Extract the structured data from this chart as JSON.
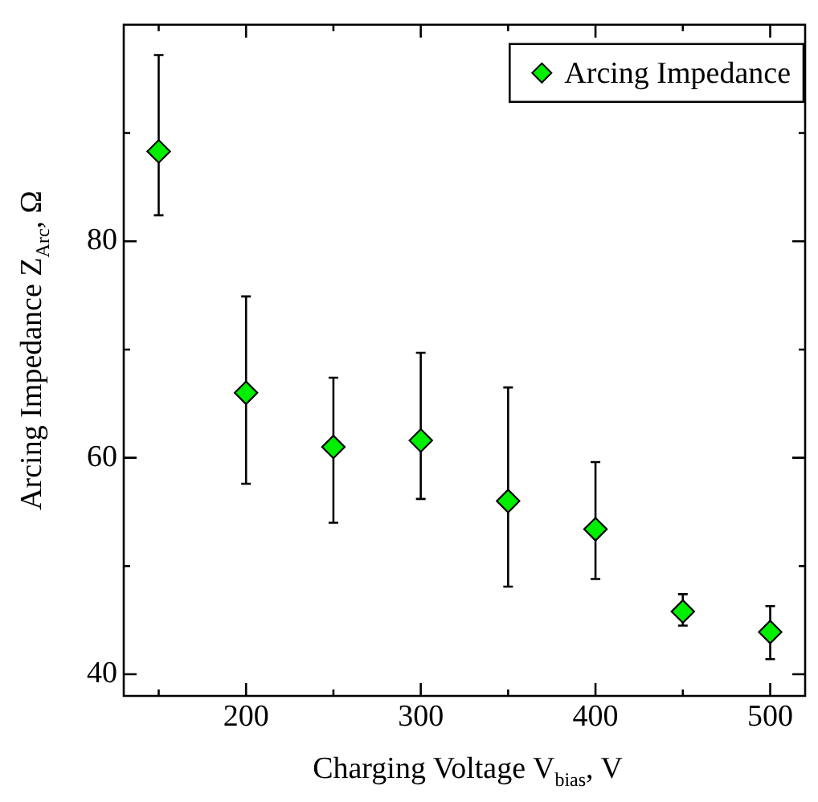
{
  "chart_data": {
    "type": "scatter",
    "xlabel": "Charging Voltage V$_{bias}$, V",
    "ylabel": "Arcing Impedance Z$_{Arc}$, Ω",
    "x": [
      150,
      200,
      250,
      300,
      350,
      400,
      450,
      500
    ],
    "series": [
      {
        "name": "Arcing Impedance",
        "color": "#00ee00",
        "values": [
          88.3,
          66.0,
          61.0,
          61.6,
          56.0,
          53.4,
          45.8,
          43.9
        ],
        "errors": [
          [
            82.4,
            97.2
          ],
          [
            57.6,
            74.9
          ],
          [
            54.0,
            67.4
          ],
          [
            56.2,
            69.7
          ],
          [
            48.1,
            66.5
          ],
          [
            48.8,
            59.6
          ],
          [
            44.5,
            47.4
          ],
          [
            41.4,
            46.3
          ]
        ]
      }
    ],
    "xlim": [
      130,
      520
    ],
    "xticks": [
      {
        "value": 150,
        "label": null
      },
      200,
      {
        "value": 250,
        "label": null
      },
      300,
      {
        "value": 350,
        "label": null
      },
      400,
      {
        "value": 450,
        "label": null
      },
      500
    ],
    "ylim": [
      38,
      100
    ],
    "yticks": [
      40,
      {
        "value": 50,
        "label": null
      },
      60,
      {
        "value": 70,
        "label": null
      },
      80,
      {
        "value": 90,
        "label": null
      }
    ],
    "grid": false,
    "legend": "top right",
    "marker": "diamond"
  }
}
